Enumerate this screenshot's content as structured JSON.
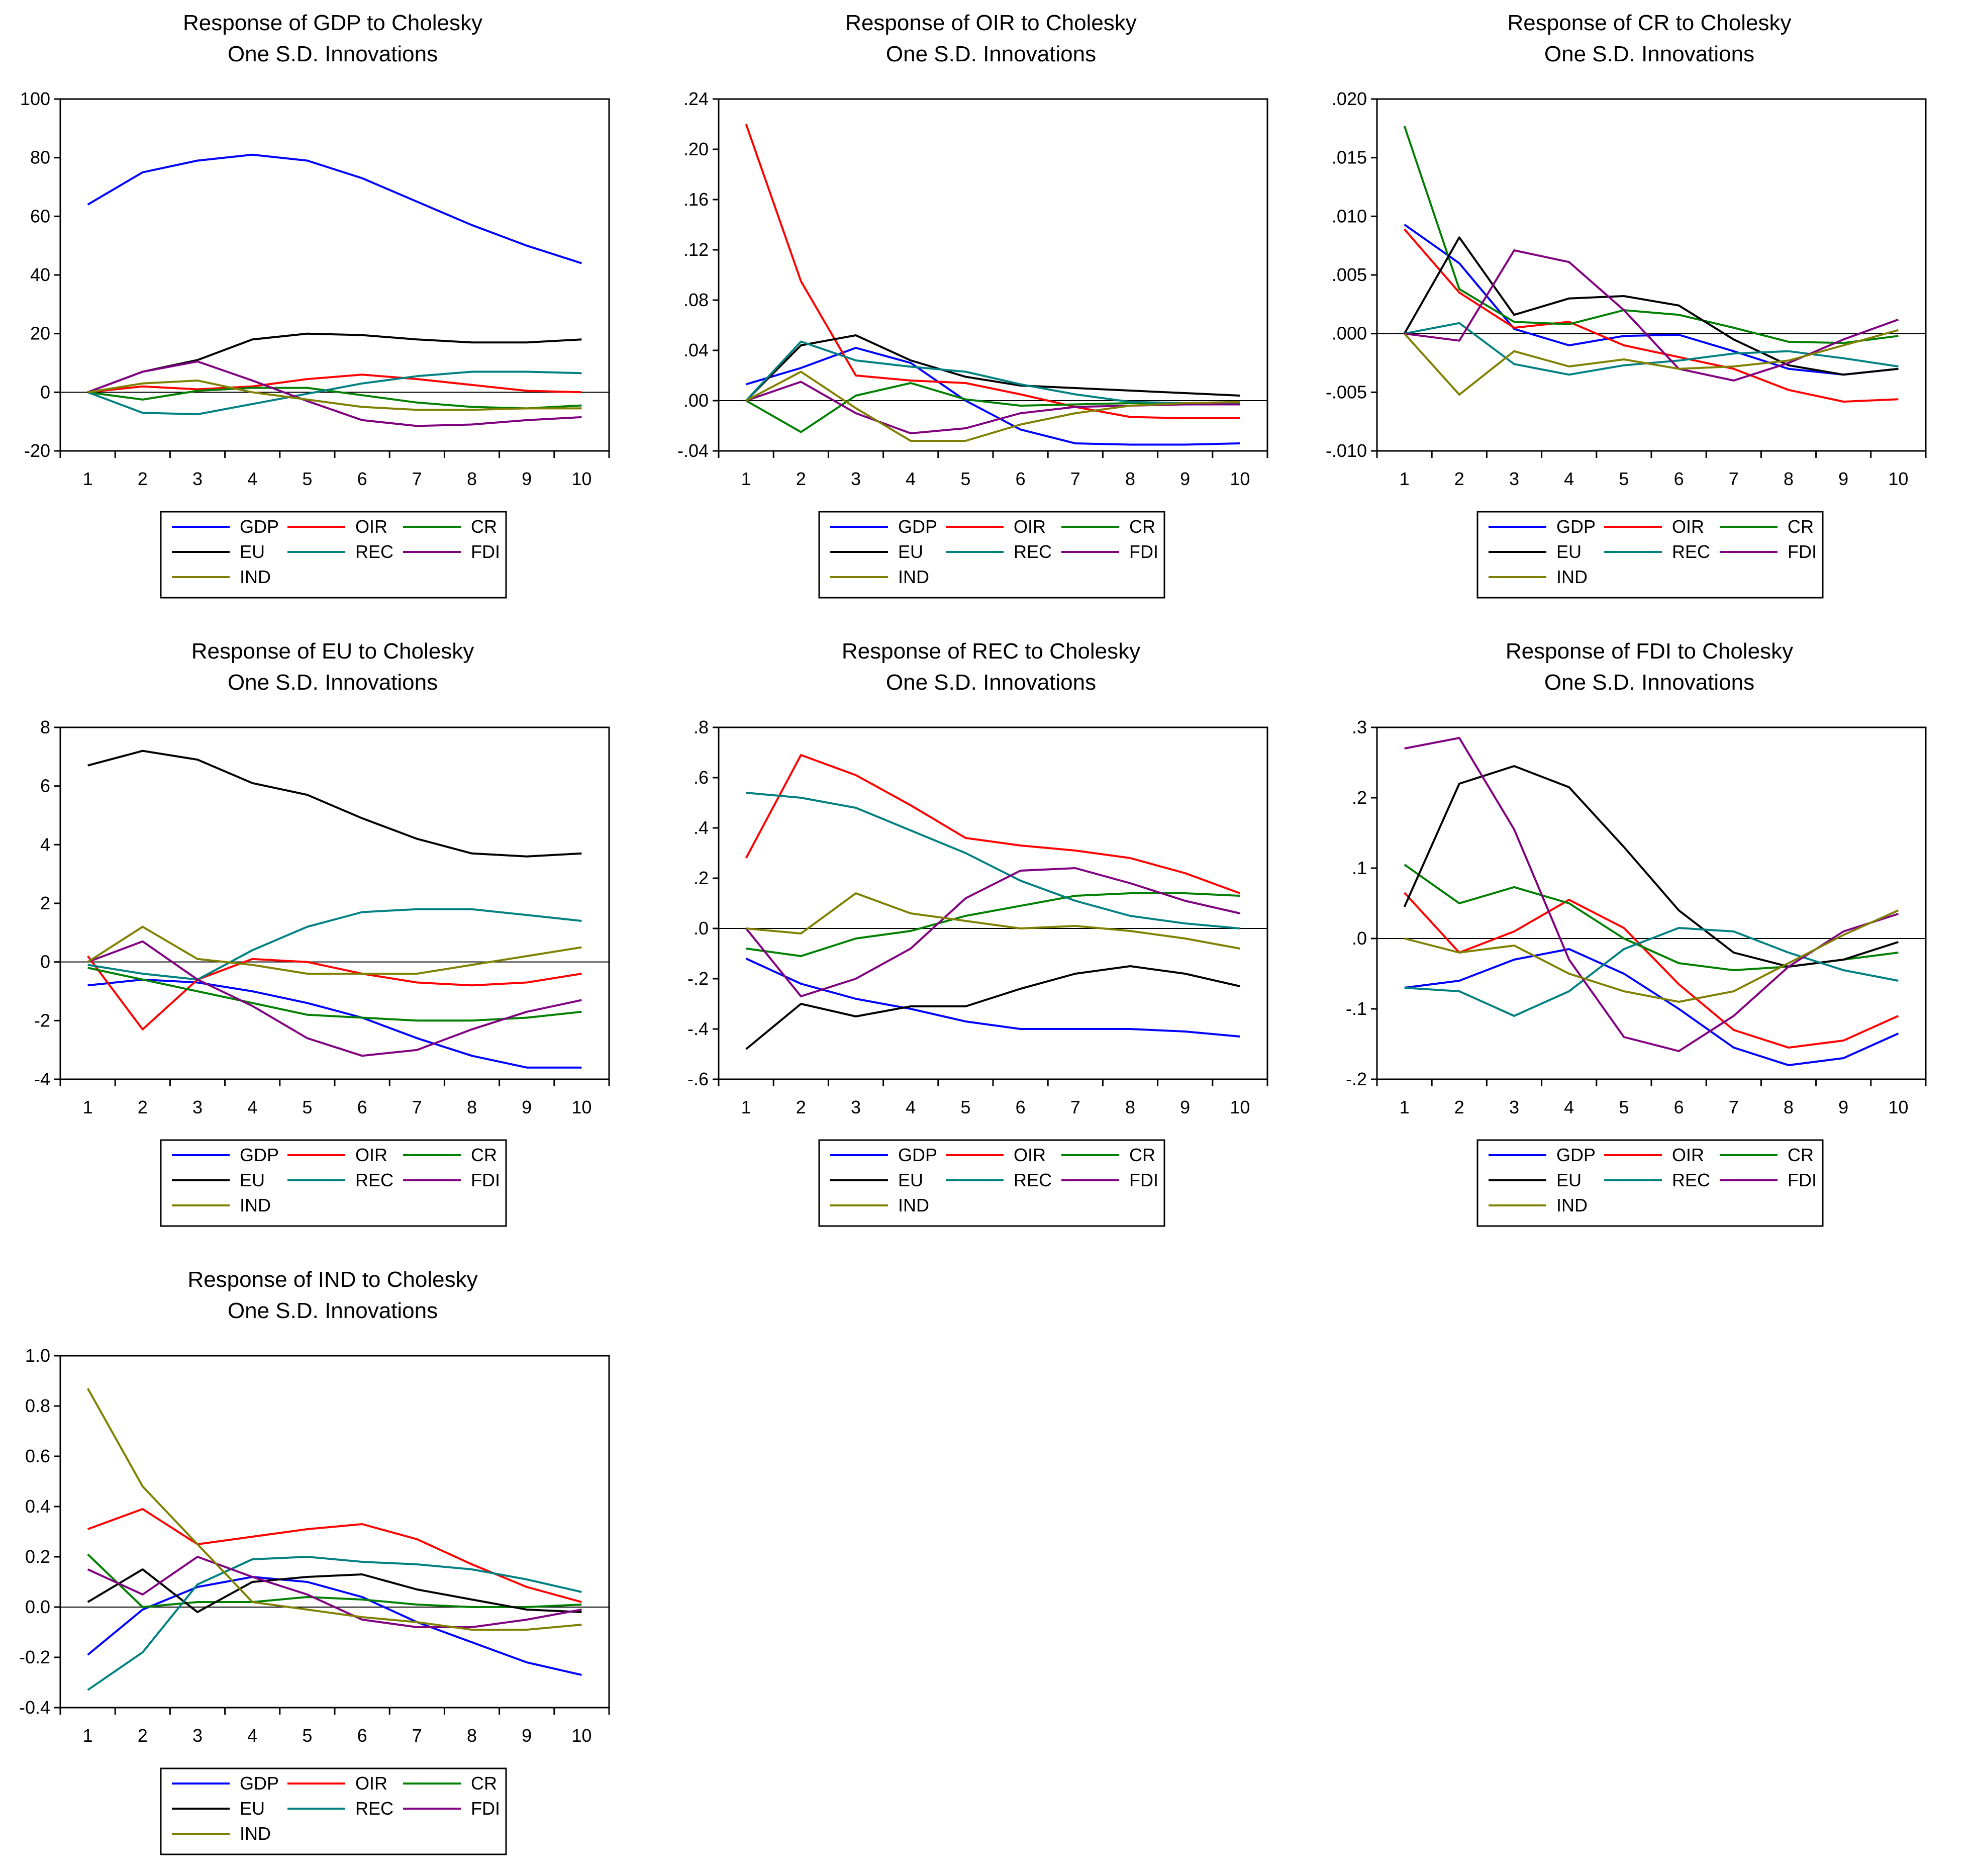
{
  "legend": {
    "entries": [
      {
        "name": "GDP",
        "color": "#0000ff"
      },
      {
        "name": "OIR",
        "color": "#ff0000"
      },
      {
        "name": "CR",
        "color": "#008000"
      },
      {
        "name": "EU",
        "color": "#000000"
      },
      {
        "name": "REC",
        "color": "#008080"
      },
      {
        "name": "FDI",
        "color": "#800080"
      },
      {
        "name": "IND",
        "color": "#808000"
      }
    ]
  },
  "chart_data": [
    {
      "type": "line",
      "title": "Response of GDP to Cholesky",
      "subtitle": "One S.D. Innovations",
      "x": [
        1,
        2,
        3,
        4,
        5,
        6,
        7,
        8,
        9,
        10
      ],
      "ylim": [
        -20,
        100
      ],
      "yticks": [
        "100",
        "80",
        "60",
        "40",
        "20",
        "0",
        "-20"
      ],
      "ytick_values": [
        100,
        80,
        60,
        40,
        20,
        0,
        -20
      ],
      "series": [
        {
          "name": "GDP",
          "values": [
            64,
            75,
            79,
            81,
            79,
            73,
            65,
            57,
            50,
            44
          ]
        },
        {
          "name": "OIR",
          "values": [
            0,
            2,
            1,
            2,
            4.5,
            6,
            4.5,
            2.5,
            0.5,
            0
          ]
        },
        {
          "name": "CR",
          "values": [
            0,
            -2.5,
            0.5,
            1.5,
            1.5,
            -1,
            -3.5,
            -5,
            -5.5,
            -4.5
          ]
        },
        {
          "name": "EU",
          "values": [
            0,
            7,
            11,
            18,
            20,
            19.5,
            18,
            17,
            17,
            18
          ]
        },
        {
          "name": "REC",
          "values": [
            0,
            -7,
            -7.5,
            -4,
            -0.5,
            3,
            5.5,
            7,
            7,
            6.5
          ]
        },
        {
          "name": "FDI",
          "values": [
            0,
            7,
            10.5,
            4,
            -3,
            -9.5,
            -11.5,
            -11,
            -9.5,
            -8.5
          ]
        },
        {
          "name": "IND",
          "values": [
            0,
            3,
            4,
            0,
            -2.5,
            -5,
            -6,
            -6,
            -5.5,
            -5.5
          ]
        }
      ]
    },
    {
      "type": "line",
      "title": "Response of OIR to Cholesky",
      "subtitle": "One S.D. Innovations",
      "x": [
        1,
        2,
        3,
        4,
        5,
        6,
        7,
        8,
        9,
        10
      ],
      "ylim": [
        -0.04,
        0.24
      ],
      "yticks": [
        ".24",
        ".20",
        ".16",
        ".12",
        ".08",
        ".04",
        ".00",
        "-.04"
      ],
      "ytick_values": [
        0.24,
        0.2,
        0.16,
        0.12,
        0.08,
        0.04,
        0.0,
        -0.04
      ],
      "series": [
        {
          "name": "GDP",
          "values": [
            0.013,
            0.026,
            0.042,
            0.03,
            0.0,
            -0.023,
            -0.034,
            -0.035,
            -0.035,
            -0.034
          ]
        },
        {
          "name": "OIR",
          "values": [
            0.22,
            0.095,
            0.02,
            0.016,
            0.014,
            0.005,
            -0.005,
            -0.013,
            -0.014,
            -0.014
          ]
        },
        {
          "name": "CR",
          "values": [
            0.0,
            -0.025,
            0.004,
            0.014,
            0.001,
            -0.004,
            -0.003,
            -0.002,
            -0.002,
            -0.002
          ]
        },
        {
          "name": "EU",
          "values": [
            0.0,
            0.044,
            0.052,
            0.032,
            0.019,
            0.012,
            0.01,
            0.008,
            0.006,
            0.004
          ]
        },
        {
          "name": "REC",
          "values": [
            0.0,
            0.047,
            0.032,
            0.027,
            0.023,
            0.013,
            0.005,
            -0.001,
            -0.002,
            -0.003
          ]
        },
        {
          "name": "FDI",
          "values": [
            0.0,
            0.015,
            -0.01,
            -0.026,
            -0.022,
            -0.01,
            -0.005,
            -0.004,
            -0.003,
            -0.003
          ]
        },
        {
          "name": "IND",
          "values": [
            0.0,
            0.023,
            -0.006,
            -0.032,
            -0.032,
            -0.019,
            -0.01,
            -0.004,
            -0.002,
            -0.001
          ]
        }
      ]
    },
    {
      "type": "line",
      "title": "Response of CR to Cholesky",
      "subtitle": "One S.D. Innovations",
      "x": [
        1,
        2,
        3,
        4,
        5,
        6,
        7,
        8,
        9,
        10
      ],
      "ylim": [
        -0.01,
        0.02
      ],
      "yticks": [
        ".020",
        ".015",
        ".010",
        ".005",
        ".000",
        "-.005",
        "-.010"
      ],
      "ytick_values": [
        0.02,
        0.015,
        0.01,
        0.005,
        0.0,
        -0.005,
        -0.01
      ],
      "series": [
        {
          "name": "GDP",
          "values": [
            0.0093,
            0.006,
            0.0004,
            -0.001,
            -0.0002,
            -0.0001,
            -0.0015,
            -0.003,
            -0.0035,
            -0.003
          ]
        },
        {
          "name": "OIR",
          "values": [
            0.0089,
            0.0035,
            0.0005,
            0.001,
            -0.001,
            -0.002,
            -0.003,
            -0.0048,
            -0.0058,
            -0.0056
          ]
        },
        {
          "name": "CR",
          "values": [
            0.0177,
            0.0038,
            0.001,
            0.0008,
            0.002,
            0.0016,
            0.0005,
            -0.0007,
            -0.0008,
            -0.0002
          ]
        },
        {
          "name": "EU",
          "values": [
            0.0,
            0.0082,
            0.0016,
            0.003,
            0.0032,
            0.0024,
            -0.0005,
            -0.0027,
            -0.0035,
            -0.003
          ]
        },
        {
          "name": "REC",
          "values": [
            0.0,
            0.0009,
            -0.0026,
            -0.0035,
            -0.0027,
            -0.0023,
            -0.0017,
            -0.0015,
            -0.0021,
            -0.0028
          ]
        },
        {
          "name": "FDI",
          "values": [
            0.0,
            -0.0006,
            0.0071,
            0.0061,
            0.002,
            -0.003,
            -0.004,
            -0.0025,
            -0.0005,
            0.0012
          ]
        },
        {
          "name": "IND",
          "values": [
            0.0,
            -0.0052,
            -0.0015,
            -0.0028,
            -0.0022,
            -0.003,
            -0.0028,
            -0.0023,
            -0.001,
            0.0003
          ]
        }
      ]
    },
    {
      "type": "line",
      "title": "Response of EU to Cholesky",
      "subtitle": "One S.D. Innovations",
      "x": [
        1,
        2,
        3,
        4,
        5,
        6,
        7,
        8,
        9,
        10
      ],
      "ylim": [
        -4,
        8
      ],
      "yticks": [
        "8",
        "6",
        "4",
        "2",
        "0",
        "-2",
        "-4"
      ],
      "ytick_values": [
        8,
        6,
        4,
        2,
        0,
        -2,
        -4
      ],
      "series": [
        {
          "name": "GDP",
          "values": [
            -0.8,
            -0.6,
            -0.7,
            -1.0,
            -1.4,
            -1.9,
            -2.6,
            -3.2,
            -3.6,
            -3.6
          ]
        },
        {
          "name": "OIR",
          "values": [
            0.2,
            -2.3,
            -0.6,
            0.1,
            0.0,
            -0.4,
            -0.7,
            -0.8,
            -0.7,
            -0.4
          ]
        },
        {
          "name": "CR",
          "values": [
            -0.2,
            -0.6,
            -1.0,
            -1.4,
            -1.8,
            -1.9,
            -2.0,
            -2.0,
            -1.9,
            -1.7
          ]
        },
        {
          "name": "EU",
          "values": [
            6.7,
            7.2,
            6.9,
            6.1,
            5.7,
            4.9,
            4.2,
            3.7,
            3.6,
            3.7
          ]
        },
        {
          "name": "REC",
          "values": [
            -0.1,
            -0.4,
            -0.6,
            0.4,
            1.2,
            1.7,
            1.8,
            1.8,
            1.6,
            1.4
          ]
        },
        {
          "name": "FDI",
          "values": [
            0.0,
            0.7,
            -0.6,
            -1.5,
            -2.6,
            -3.2,
            -3.0,
            -2.3,
            -1.7,
            -1.3
          ]
        },
        {
          "name": "IND",
          "values": [
            0.0,
            1.2,
            0.1,
            -0.1,
            -0.4,
            -0.4,
            -0.4,
            -0.1,
            0.2,
            0.5
          ]
        }
      ]
    },
    {
      "type": "line",
      "title": "Response of REC to Cholesky",
      "subtitle": "One S.D. Innovations",
      "x": [
        1,
        2,
        3,
        4,
        5,
        6,
        7,
        8,
        9,
        10
      ],
      "ylim": [
        -0.6,
        0.8
      ],
      "yticks": [
        ".8",
        ".6",
        ".4",
        ".2",
        ".0",
        "-.2",
        "-.4",
        "-.6"
      ],
      "ytick_values": [
        0.8,
        0.6,
        0.4,
        0.2,
        0.0,
        -0.2,
        -0.4,
        -0.6
      ],
      "series": [
        {
          "name": "GDP",
          "values": [
            -0.12,
            -0.22,
            -0.28,
            -0.32,
            -0.37,
            -0.4,
            -0.4,
            -0.4,
            -0.41,
            -0.43
          ]
        },
        {
          "name": "OIR",
          "values": [
            0.28,
            0.69,
            0.61,
            0.49,
            0.36,
            0.33,
            0.31,
            0.28,
            0.22,
            0.14
          ]
        },
        {
          "name": "CR",
          "values": [
            -0.08,
            -0.11,
            -0.04,
            -0.01,
            0.05,
            0.09,
            0.13,
            0.14,
            0.14,
            0.13
          ]
        },
        {
          "name": "EU",
          "values": [
            -0.48,
            -0.3,
            -0.35,
            -0.31,
            -0.31,
            -0.24,
            -0.18,
            -0.15,
            -0.18,
            -0.23
          ]
        },
        {
          "name": "REC",
          "values": [
            0.54,
            0.52,
            0.48,
            0.39,
            0.3,
            0.19,
            0.11,
            0.05,
            0.02,
            0.0
          ]
        },
        {
          "name": "FDI",
          "values": [
            0.0,
            -0.27,
            -0.2,
            -0.08,
            0.12,
            0.23,
            0.24,
            0.18,
            0.11,
            0.06
          ]
        },
        {
          "name": "IND",
          "values": [
            0.0,
            -0.02,
            0.14,
            0.06,
            0.03,
            0.0,
            0.01,
            -0.01,
            -0.04,
            -0.08
          ]
        }
      ]
    },
    {
      "type": "line",
      "title": "Response of FDI to Cholesky",
      "subtitle": "One S.D. Innovations",
      "x": [
        1,
        2,
        3,
        4,
        5,
        6,
        7,
        8,
        9,
        10
      ],
      "ylim": [
        -0.2,
        0.3
      ],
      "yticks": [
        ".3",
        ".2",
        ".1",
        ".0",
        "-.1",
        "-.2"
      ],
      "ytick_values": [
        0.3,
        0.2,
        0.1,
        0.0,
        -0.1,
        -0.2
      ],
      "series": [
        {
          "name": "GDP",
          "values": [
            -0.07,
            -0.06,
            -0.03,
            -0.015,
            -0.05,
            -0.1,
            -0.155,
            -0.18,
            -0.17,
            -0.135
          ]
        },
        {
          "name": "OIR",
          "values": [
            0.065,
            -0.02,
            0.01,
            0.055,
            0.015,
            -0.065,
            -0.13,
            -0.155,
            -0.145,
            -0.11
          ]
        },
        {
          "name": "CR",
          "values": [
            0.105,
            0.05,
            0.073,
            0.05,
            0.0,
            -0.035,
            -0.045,
            -0.04,
            -0.03,
            -0.02
          ]
        },
        {
          "name": "EU",
          "values": [
            0.045,
            0.22,
            0.245,
            0.215,
            0.13,
            0.04,
            -0.02,
            -0.04,
            -0.03,
            -0.005
          ]
        },
        {
          "name": "REC",
          "values": [
            -0.07,
            -0.075,
            -0.11,
            -0.075,
            -0.015,
            0.015,
            0.01,
            -0.02,
            -0.045,
            -0.06
          ]
        },
        {
          "name": "FDI",
          "values": [
            0.27,
            0.285,
            0.155,
            -0.03,
            -0.14,
            -0.16,
            -0.11,
            -0.04,
            0.01,
            0.035
          ]
        },
        {
          "name": "IND",
          "values": [
            0.0,
            -0.02,
            -0.01,
            -0.05,
            -0.075,
            -0.09,
            -0.075,
            -0.035,
            0.005,
            0.04
          ]
        }
      ]
    },
    {
      "type": "line",
      "title": "Response of IND to Cholesky",
      "subtitle": "One S.D. Innovations",
      "x": [
        1,
        2,
        3,
        4,
        5,
        6,
        7,
        8,
        9,
        10
      ],
      "ylim": [
        -0.4,
        1.0
      ],
      "yticks": [
        "1.0",
        "0.8",
        "0.6",
        "0.4",
        "0.2",
        "0.0",
        "-0.2",
        "-0.4"
      ],
      "ytick_values": [
        1.0,
        0.8,
        0.6,
        0.4,
        0.2,
        0.0,
        -0.2,
        -0.4
      ],
      "series": [
        {
          "name": "GDP",
          "values": [
            -0.19,
            -0.01,
            0.08,
            0.12,
            0.1,
            0.04,
            -0.06,
            -0.14,
            -0.22,
            -0.27
          ]
        },
        {
          "name": "OIR",
          "values": [
            0.31,
            0.39,
            0.25,
            0.28,
            0.31,
            0.33,
            0.27,
            0.17,
            0.08,
            0.02
          ]
        },
        {
          "name": "CR",
          "values": [
            0.21,
            0.0,
            0.02,
            0.02,
            0.04,
            0.03,
            0.01,
            0.0,
            0.0,
            0.01
          ]
        },
        {
          "name": "EU",
          "values": [
            0.02,
            0.15,
            -0.02,
            0.1,
            0.12,
            0.13,
            0.07,
            0.03,
            -0.01,
            -0.02
          ]
        },
        {
          "name": "REC",
          "values": [
            -0.33,
            -0.18,
            0.09,
            0.19,
            0.2,
            0.18,
            0.17,
            0.15,
            0.11,
            0.06
          ]
        },
        {
          "name": "FDI",
          "values": [
            0.15,
            0.05,
            0.2,
            0.12,
            0.05,
            -0.05,
            -0.08,
            -0.08,
            -0.05,
            -0.01
          ]
        },
        {
          "name": "IND",
          "values": [
            0.87,
            0.48,
            0.25,
            0.02,
            -0.01,
            -0.04,
            -0.06,
            -0.09,
            -0.09,
            -0.07
          ]
        }
      ]
    }
  ]
}
